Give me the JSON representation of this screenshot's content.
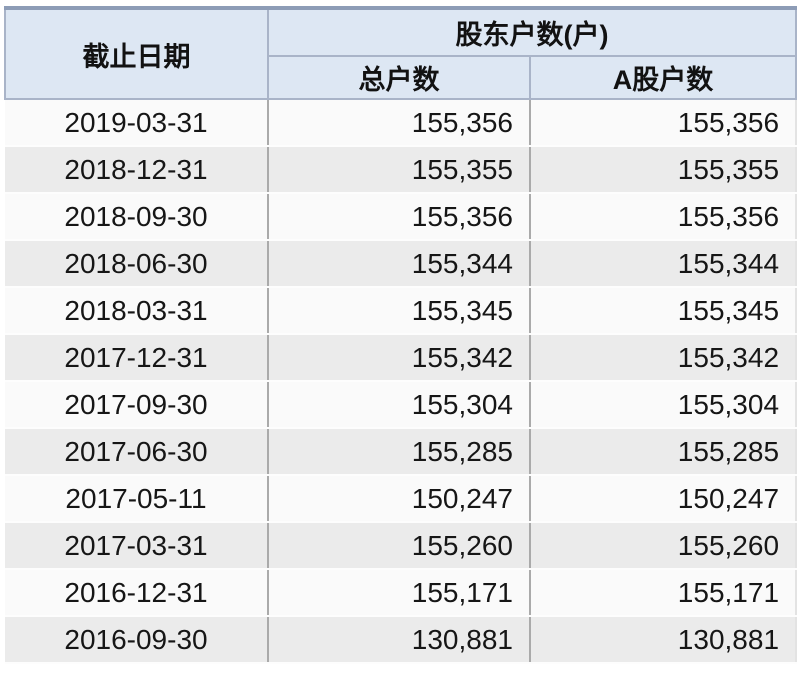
{
  "table": {
    "header": {
      "date_col": "截止日期",
      "group_col": "股东户数(户)",
      "total_col": "总户数",
      "a_share_col": "A股户数"
    },
    "rows": [
      {
        "date": "2019-03-31",
        "total": "155,356",
        "a_share": "155,356"
      },
      {
        "date": "2018-12-31",
        "total": "155,355",
        "a_share": "155,355"
      },
      {
        "date": "2018-09-30",
        "total": "155,356",
        "a_share": "155,356"
      },
      {
        "date": "2018-06-30",
        "total": "155,344",
        "a_share": "155,344"
      },
      {
        "date": "2018-03-31",
        "total": "155,345",
        "a_share": "155,345"
      },
      {
        "date": "2017-12-31",
        "total": "155,342",
        "a_share": "155,342"
      },
      {
        "date": "2017-09-30",
        "total": "155,304",
        "a_share": "155,304"
      },
      {
        "date": "2017-06-30",
        "total": "155,285",
        "a_share": "155,285"
      },
      {
        "date": "2017-05-11",
        "total": "150,247",
        "a_share": "150,247"
      },
      {
        "date": "2017-03-31",
        "total": "155,260",
        "a_share": "155,260"
      },
      {
        "date": "2016-12-31",
        "total": "155,171",
        "a_share": "155,171"
      },
      {
        "date": "2016-09-30",
        "total": "130,881",
        "a_share": "130,881"
      }
    ]
  },
  "colors": {
    "header_bg": "#dde7f3",
    "header_border": "#a9b4c8",
    "table_top_border": "#8d9cb6",
    "row_odd_bg": "#fafafa",
    "row_even_bg": "#ebebeb",
    "body_divider": "#aaaaaa",
    "text": "#161616"
  },
  "chart_data": {
    "type": "table",
    "title": "股东户数(户)",
    "columns": [
      "截止日期",
      "总户数",
      "A股户数"
    ],
    "rows": [
      [
        "2019-03-31",
        155356,
        155356
      ],
      [
        "2018-12-31",
        155355,
        155355
      ],
      [
        "2018-09-30",
        155356,
        155356
      ],
      [
        "2018-06-30",
        155344,
        155344
      ],
      [
        "2018-03-31",
        155345,
        155345
      ],
      [
        "2017-12-31",
        155342,
        155342
      ],
      [
        "2017-09-30",
        155304,
        155304
      ],
      [
        "2017-06-30",
        155285,
        155285
      ],
      [
        "2017-05-11",
        150247,
        150247
      ],
      [
        "2017-03-31",
        155260,
        155260
      ],
      [
        "2016-12-31",
        155171,
        155171
      ],
      [
        "2016-09-30",
        130881,
        130881
      ]
    ],
    "layout_hints": {
      "header_levels": 2,
      "group_header": "股东户数(户) spans 总户数 and A股户数",
      "striped_rows": true
    }
  }
}
